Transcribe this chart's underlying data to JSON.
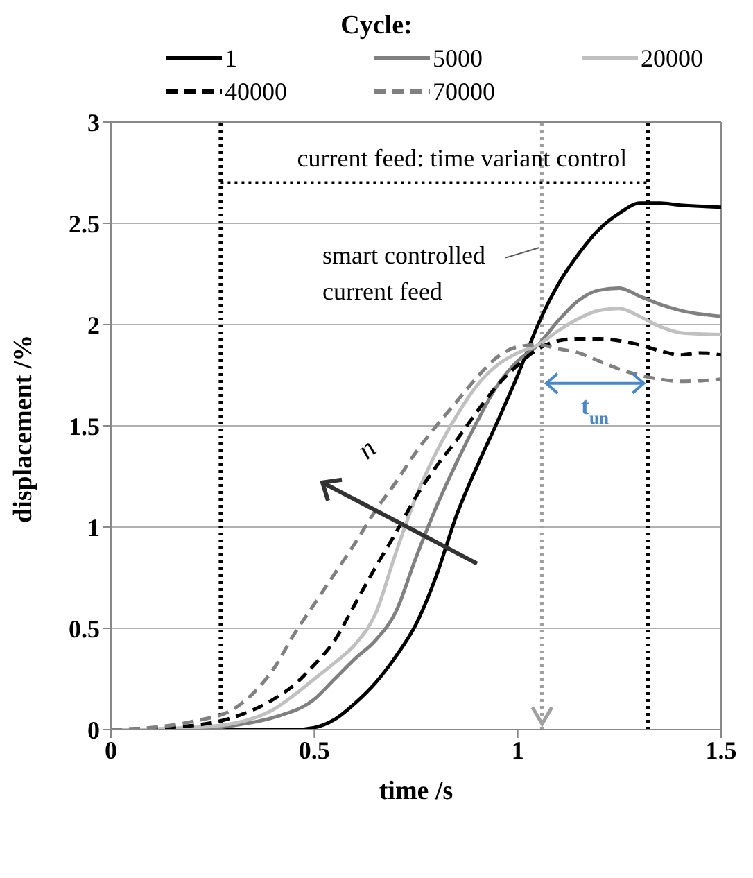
{
  "chart_data": {
    "type": "line",
    "xlabel": "time /s",
    "ylabel": "displacement /%",
    "legend_title": "Cycle:",
    "legend": "top",
    "grid": "y",
    "marker": "none",
    "xlim": [
      0,
      1.5
    ],
    "xticks": [
      0,
      0.5,
      1,
      1.5
    ],
    "ylim": [
      0,
      3
    ],
    "yticks": [
      0,
      0.5,
      1,
      1.5,
      2,
      2.5,
      3
    ],
    "series": [
      {
        "name": "1",
        "color": "#000000",
        "line_style": "solid",
        "x": [
          0,
          0.45,
          0.5,
          0.55,
          0.6,
          0.65,
          0.7,
          0.75,
          0.8,
          0.85,
          0.9,
          0.95,
          1.0,
          1.05,
          1.1,
          1.15,
          1.2,
          1.25,
          1.3,
          1.35,
          1.4,
          1.5
        ],
        "values": [
          0,
          0,
          0.01,
          0.05,
          0.13,
          0.23,
          0.36,
          0.52,
          0.76,
          1.06,
          1.3,
          1.52,
          1.75,
          2.0,
          2.2,
          2.35,
          2.47,
          2.55,
          2.6,
          2.6,
          2.59,
          2.58
        ]
      },
      {
        "name": "5000",
        "color": "#808080",
        "line_style": "solid",
        "x": [
          0,
          0.2,
          0.3,
          0.4,
          0.5,
          0.55,
          0.6,
          0.65,
          0.7,
          0.75,
          0.8,
          0.85,
          0.9,
          0.95,
          1.0,
          1.05,
          1.1,
          1.15,
          1.2,
          1.25,
          1.3,
          1.35,
          1.4,
          1.5
        ],
        "values": [
          0,
          0,
          0.02,
          0.06,
          0.15,
          0.25,
          0.35,
          0.44,
          0.58,
          0.85,
          1.1,
          1.32,
          1.52,
          1.7,
          1.82,
          1.9,
          2.02,
          2.12,
          2.17,
          2.18,
          2.14,
          2.1,
          2.07,
          2.04
        ]
      },
      {
        "name": "20000",
        "color": "#c0c0c0",
        "line_style": "solid",
        "x": [
          0,
          0.2,
          0.3,
          0.4,
          0.45,
          0.5,
          0.55,
          0.6,
          0.65,
          0.7,
          0.75,
          0.8,
          0.85,
          0.9,
          0.95,
          1.0,
          1.05,
          1.1,
          1.15,
          1.2,
          1.25,
          1.3,
          1.35,
          1.4,
          1.5
        ],
        "values": [
          0,
          0.01,
          0.03,
          0.1,
          0.17,
          0.25,
          0.33,
          0.42,
          0.57,
          0.87,
          1.15,
          1.37,
          1.55,
          1.7,
          1.8,
          1.86,
          1.9,
          1.97,
          2.03,
          2.07,
          2.08,
          2.04,
          1.99,
          1.96,
          1.95
        ]
      },
      {
        "name": "40000",
        "color": "#000000",
        "line_style": "dashed",
        "x": [
          0,
          0.2,
          0.3,
          0.4,
          0.45,
          0.5,
          0.55,
          0.6,
          0.65,
          0.7,
          0.75,
          0.8,
          0.85,
          0.9,
          0.95,
          1.0,
          1.05,
          1.1,
          1.15,
          1.2,
          1.25,
          1.3,
          1.35,
          1.4,
          1.45,
          1.5
        ],
        "values": [
          0,
          0.02,
          0.06,
          0.15,
          0.22,
          0.32,
          0.44,
          0.62,
          0.8,
          0.97,
          1.15,
          1.3,
          1.43,
          1.57,
          1.7,
          1.8,
          1.88,
          1.92,
          1.93,
          1.93,
          1.92,
          1.9,
          1.87,
          1.85,
          1.86,
          1.85
        ]
      },
      {
        "name": "70000",
        "color": "#808080",
        "line_style": "dashed",
        "x": [
          0,
          0.1,
          0.2,
          0.3,
          0.35,
          0.4,
          0.45,
          0.5,
          0.55,
          0.6,
          0.65,
          0.7,
          0.75,
          0.8,
          0.85,
          0.9,
          0.95,
          1.0,
          1.05,
          1.1,
          1.15,
          1.2,
          1.25,
          1.3,
          1.35,
          1.4,
          1.5
        ],
        "values": [
          0,
          0.01,
          0.04,
          0.1,
          0.18,
          0.3,
          0.47,
          0.62,
          0.77,
          0.92,
          1.08,
          1.22,
          1.37,
          1.5,
          1.62,
          1.74,
          1.84,
          1.89,
          1.9,
          1.88,
          1.86,
          1.82,
          1.78,
          1.75,
          1.73,
          1.72,
          1.73
        ]
      }
    ],
    "ref_lines": [
      {
        "axis": "x",
        "value": 0.27,
        "color": "#000000",
        "line_style": "dotted"
      },
      {
        "axis": "x",
        "value": 1.06,
        "color": "#a0a0a0",
        "line_style": "dotted"
      },
      {
        "axis": "x",
        "value": 1.32,
        "color": "#000000",
        "line_style": "dotted"
      }
    ],
    "annotations": [
      "smart controlled current feed",
      "t$_{un}$",
      "n",
      "current feed: time variant control"
    ]
  }
}
